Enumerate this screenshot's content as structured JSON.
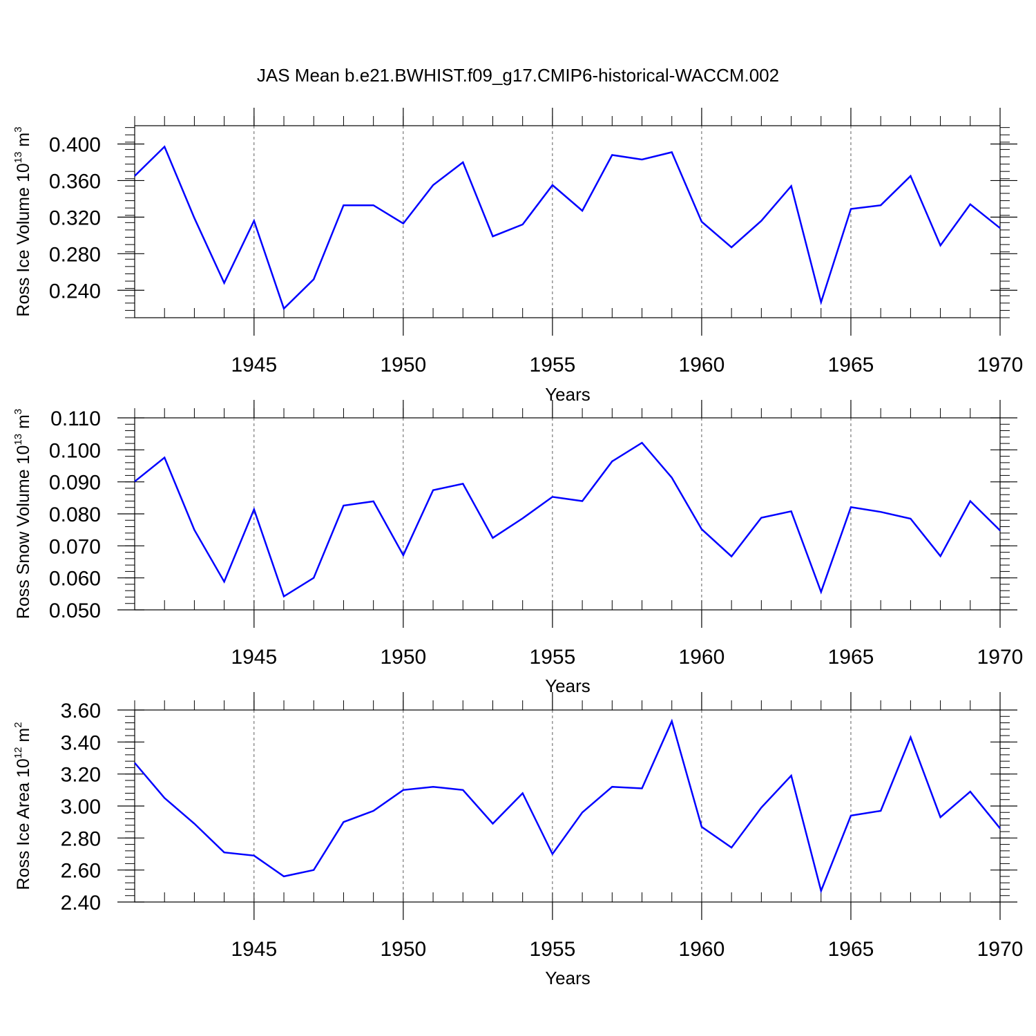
{
  "title": "JAS Mean b.e21.BWHIST.f09_g17.CMIP6-historical-WACCM.002",
  "colors": {
    "line": "#0000ff",
    "axis": "#000000",
    "grid": "#000000"
  },
  "chart_data": [
    {
      "type": "line",
      "ylabel": {
        "prefix": "Ross Ice Volume 10",
        "exp": "13",
        "unit": " m",
        "unit_exp": "3"
      },
      "xlabel": "Years",
      "xlim": [
        1941,
        1970
      ],
      "ylim": [
        0.21,
        0.42
      ],
      "yticks": [
        "0.240",
        "0.280",
        "0.320",
        "0.360",
        "0.400"
      ],
      "xticks": [
        "1945",
        "1950",
        "1955",
        "1960",
        "1965",
        "1970"
      ],
      "grid": "vertical dashed at major x ticks",
      "x": [
        1941,
        1942,
        1943,
        1944,
        1945,
        1946,
        1947,
        1948,
        1949,
        1950,
        1951,
        1952,
        1953,
        1954,
        1955,
        1956,
        1957,
        1958,
        1959,
        1960,
        1961,
        1962,
        1963,
        1964,
        1965,
        1966,
        1967,
        1968,
        1969,
        1970
      ],
      "series": [
        {
          "values": [
            0.365,
            0.397,
            0.319,
            0.248,
            0.316,
            0.22,
            0.252,
            0.333,
            0.333,
            0.313,
            0.355,
            0.38,
            0.299,
            0.312,
            0.355,
            0.327,
            0.388,
            0.383,
            0.391,
            0.315,
            0.287,
            0.316,
            0.354,
            0.227,
            0.329,
            0.333,
            0.365,
            0.289,
            0.334,
            0.308
          ]
        }
      ]
    },
    {
      "type": "line",
      "ylabel": {
        "prefix": "Ross Snow Volume 10",
        "exp": "13",
        "unit": " m",
        "unit_exp": "3"
      },
      "xlabel": "Years",
      "xlim": [
        1941,
        1970
      ],
      "ylim": [
        0.05,
        0.11
      ],
      "yticks": [
        "0.050",
        "0.060",
        "0.070",
        "0.080",
        "0.090",
        "0.100",
        "0.110"
      ],
      "xticks": [
        "1945",
        "1950",
        "1955",
        "1960",
        "1965",
        "1970"
      ],
      "grid": "vertical dashed at major x ticks",
      "x": [
        1941,
        1942,
        1943,
        1944,
        1945,
        1946,
        1947,
        1948,
        1949,
        1950,
        1951,
        1952,
        1953,
        1954,
        1955,
        1956,
        1957,
        1958,
        1959,
        1960,
        1961,
        1962,
        1963,
        1964,
        1965,
        1966,
        1967,
        1968,
        1969,
        1970
      ],
      "series": [
        {
          "values": [
            0.0901,
            0.0976,
            0.075,
            0.0588,
            0.0814,
            0.0542,
            0.06,
            0.0826,
            0.0839,
            0.0671,
            0.0874,
            0.0894,
            0.0725,
            0.0786,
            0.0853,
            0.084,
            0.0964,
            0.1022,
            0.0913,
            0.0752,
            0.0667,
            0.0788,
            0.0808,
            0.0556,
            0.0821,
            0.0806,
            0.0785,
            0.0668,
            0.084,
            0.0748
          ]
        }
      ]
    },
    {
      "type": "line",
      "ylabel": {
        "prefix": "Ross Ice Area 10",
        "exp": "12",
        "unit": " m",
        "unit_exp": "2"
      },
      "xlabel": "Years",
      "xlim": [
        1941,
        1970
      ],
      "ylim": [
        2.4,
        3.6
      ],
      "yticks": [
        "2.40",
        "2.60",
        "2.80",
        "3.00",
        "3.20",
        "3.40",
        "3.60"
      ],
      "xticks": [
        "1945",
        "1950",
        "1955",
        "1960",
        "1965",
        "1970"
      ],
      "grid": "vertical dashed at major x ticks",
      "x": [
        1941,
        1942,
        1943,
        1944,
        1945,
        1946,
        1947,
        1948,
        1949,
        1950,
        1951,
        1952,
        1953,
        1954,
        1955,
        1956,
        1957,
        1958,
        1959,
        1960,
        1961,
        1962,
        1963,
        1964,
        1965,
        1966,
        1967,
        1968,
        1969,
        1970
      ],
      "series": [
        {
          "values": [
            3.27,
            3.05,
            2.89,
            2.71,
            2.69,
            2.56,
            2.6,
            2.9,
            2.97,
            3.1,
            3.12,
            3.1,
            2.89,
            3.08,
            2.7,
            2.96,
            3.12,
            3.11,
            3.53,
            2.87,
            2.74,
            2.99,
            3.19,
            2.47,
            2.94,
            2.97,
            3.43,
            2.93,
            3.09,
            2.86
          ]
        }
      ]
    }
  ]
}
